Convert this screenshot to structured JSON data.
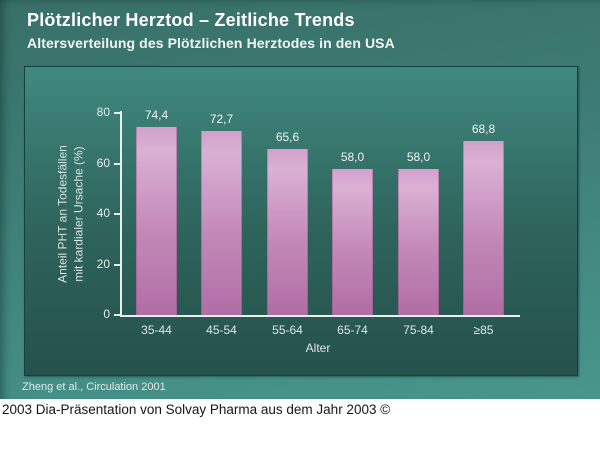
{
  "slide": {
    "title": "Plötzlicher Herztod – Zeitliche Trends",
    "subtitle": "Altersverteilung des Plötzlichen Herztodes in den USA",
    "citation": "Zheng et al., Circulation 2001"
  },
  "footer": {
    "text": "2003 Dia-Präsentation von Solvay Pharma aus dem Jahr 2003 ©"
  },
  "chart_data": {
    "type": "bar",
    "title": "Altersverteilung des Plötzlichen Herztodes in den USA",
    "categories": [
      "35-44",
      "45-54",
      "55-64",
      "65-74",
      "75-84",
      "≥85"
    ],
    "values": [
      74.4,
      72.7,
      65.6,
      58.0,
      58.0,
      68.8
    ],
    "decimal_separator": ",",
    "xlabel": "Alter",
    "ylabel_lines": [
      "Anteil PHT an Todesfällen",
      "mit kardialer Ursache (%)"
    ],
    "yticks": [
      0,
      20,
      40,
      60,
      80
    ],
    "ylim": [
      0,
      80
    ],
    "grid": false,
    "legend": "none"
  },
  "colors": {
    "slide_bg": "#3d7c74",
    "panel_bg_top": "#40897f",
    "panel_bg_bottom": "#24514b",
    "bar_gradient": [
      "#d2a0ca",
      "#dab1d5",
      "#c489b8",
      "#b06ea4"
    ],
    "axis_color": "#e9edec",
    "title_text": "#ffffff",
    "footer_bg": "#ffffff",
    "footer_text": "#161616"
  }
}
